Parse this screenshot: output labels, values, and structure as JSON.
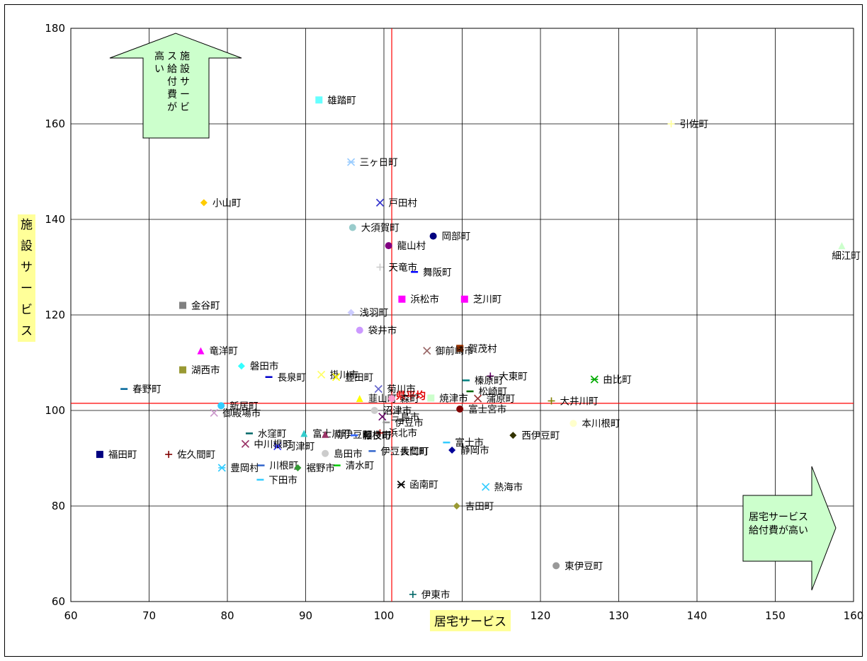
{
  "chart_data": {
    "type": "scatter",
    "xlabel": "居宅サービス",
    "ylabel": "施設サービス",
    "xlim": [
      60,
      160
    ],
    "ylim": [
      60,
      180
    ],
    "xticks": [
      60,
      70,
      80,
      90,
      100,
      110,
      120,
      130,
      140,
      150,
      160
    ],
    "yticks": [
      60,
      80,
      100,
      120,
      140,
      160,
      180
    ],
    "grid": true,
    "average": {
      "label": "県平均",
      "x": 101,
      "y": 101.5,
      "color": "#ff0000"
    },
    "annotations": {
      "up_arrow": "施設サービス給付費が高い",
      "right_arrow_line1": "居宅サービス",
      "right_arrow_line2": "給付費が高い"
    },
    "points": [
      {
        "name": "雄踏町",
        "x": 91.7,
        "y": 165,
        "marker": "square",
        "color": "#66ffff"
      },
      {
        "name": "引佐町",
        "x": 136.7,
        "y": 160,
        "marker": "cross",
        "color": "#ffff99"
      },
      {
        "name": "三ヶ日町",
        "x": 95.8,
        "y": 152,
        "marker": "star",
        "color": "#99ccff"
      },
      {
        "name": "小山町",
        "x": 77,
        "y": 143.5,
        "marker": "diamond",
        "color": "#ffcc00"
      },
      {
        "name": "戸田村",
        "x": 99.5,
        "y": 143.5,
        "marker": "x",
        "color": "#3333cc"
      },
      {
        "name": "大須賀町",
        "x": 96,
        "y": 138.3,
        "marker": "circle",
        "color": "#99cccc"
      },
      {
        "name": "岡部町",
        "x": 106.3,
        "y": 136.5,
        "marker": "circle",
        "color": "#000080"
      },
      {
        "name": "龍山村",
        "x": 100.6,
        "y": 134.5,
        "marker": "circle",
        "color": "#800080"
      },
      {
        "name": "細江町",
        "x": 158.5,
        "y": 134.5,
        "marker": "triangle",
        "color": "#ccffcc"
      },
      {
        "name": "天竜市",
        "x": 99.5,
        "y": 130,
        "marker": "cross",
        "color": "#cccccc"
      },
      {
        "name": "舞阪町",
        "x": 103.9,
        "y": 129,
        "marker": "dash",
        "color": "#0000ff"
      },
      {
        "name": "浜松市",
        "x": 102.3,
        "y": 123.3,
        "marker": "square",
        "color": "#ff00ff"
      },
      {
        "name": "芝川町",
        "x": 110.3,
        "y": 123.3,
        "marker": "square",
        "color": "#ff00ff"
      },
      {
        "name": "金谷町",
        "x": 74.3,
        "y": 122,
        "marker": "square",
        "color": "#808080"
      },
      {
        "name": "浅羽町",
        "x": 95.8,
        "y": 120.5,
        "marker": "diamond",
        "color": "#ccccff"
      },
      {
        "name": "袋井市",
        "x": 96.9,
        "y": 116.8,
        "marker": "circle",
        "color": "#cc99ff"
      },
      {
        "name": "賀茂村",
        "x": 109.7,
        "y": 113,
        "marker": "square",
        "color": "#993300"
      },
      {
        "name": "竜洋町",
        "x": 76.6,
        "y": 112.5,
        "marker": "triangle",
        "color": "#ff00ff"
      },
      {
        "name": "御前崎市",
        "x": 105.5,
        "y": 112.5,
        "marker": "x",
        "color": "#996666"
      },
      {
        "name": "磐田市",
        "x": 81.8,
        "y": 109.3,
        "marker": "diamond",
        "color": "#33ffff"
      },
      {
        "name": "湖西市",
        "x": 74.3,
        "y": 108.5,
        "marker": "square",
        "color": "#999933"
      },
      {
        "name": "掛川市",
        "x": 92,
        "y": 107.5,
        "marker": "x",
        "color": "#ffff66"
      },
      {
        "name": "豊田町",
        "x": 93.9,
        "y": 107,
        "marker": "x",
        "color": "#ffff00"
      },
      {
        "name": "長泉町",
        "x": 85.3,
        "y": 107,
        "marker": "dash",
        "color": "#0000cc"
      },
      {
        "name": "大東町",
        "x": 113.6,
        "y": 107.2,
        "marker": "cross",
        "color": "#660066"
      },
      {
        "name": "榛原町",
        "x": 110.5,
        "y": 106.3,
        "marker": "dash",
        "color": "#008080"
      },
      {
        "name": "由比町",
        "x": 126.9,
        "y": 106.5,
        "marker": "star",
        "color": "#00aa00"
      },
      {
        "name": "菊川市",
        "x": 99.3,
        "y": 104.5,
        "marker": "x",
        "color": "#6666cc"
      },
      {
        "name": "春野町",
        "x": 66.8,
        "y": 104.5,
        "marker": "dash",
        "color": "#006699"
      },
      {
        "name": "松崎町",
        "x": 111,
        "y": 104,
        "marker": "dash",
        "color": "#006600"
      },
      {
        "name": "韮山町",
        "x": 96.9,
        "y": 102.5,
        "marker": "triangle",
        "color": "#ffff00"
      },
      {
        "name": "焼津市",
        "x": 106,
        "y": 102.6,
        "marker": "square",
        "color": "#ccffcc"
      },
      {
        "name": "森町",
        "x": 101,
        "y": 102.5,
        "marker": "circle",
        "color": "#ff99cc"
      },
      {
        "name": "蒲原町",
        "x": 112,
        "y": 102.5,
        "marker": "x",
        "color": "#993333"
      },
      {
        "name": "大井川町",
        "x": 121.4,
        "y": 102,
        "marker": "cross",
        "color": "#808000"
      },
      {
        "name": "新居町",
        "x": 79.2,
        "y": 101,
        "marker": "circle",
        "color": "#33ccff"
      },
      {
        "name": "富士宮市",
        "x": 109.7,
        "y": 100.3,
        "marker": "circle",
        "color": "#800000"
      },
      {
        "name": "沼津市",
        "x": 98.8,
        "y": 100,
        "marker": "circle",
        "color": "#cccccc"
      },
      {
        "name": "三島市",
        "x": 99.8,
        "y": 98.7,
        "marker": "x",
        "color": "#660066"
      },
      {
        "name": "伊豆市",
        "x": 100.3,
        "y": 97.5,
        "marker": "dash",
        "color": "#999999"
      },
      {
        "name": "本川根町",
        "x": 124.2,
        "y": 97.3,
        "marker": "circle",
        "color": "#ffffcc"
      },
      {
        "name": "御殿場市",
        "x": 78.3,
        "y": 99.5,
        "marker": "x",
        "color": "#cc99cc"
      },
      {
        "name": "富士川町",
        "x": 89.8,
        "y": 95.2,
        "marker": "triangle",
        "color": "#33cccc"
      },
      {
        "name": "南伊豆町",
        "x": 92.5,
        "y": 95,
        "marker": "triangle",
        "color": "#993366"
      },
      {
        "name": "浜北市",
        "x": 99.5,
        "y": 95.3,
        "marker": "cross",
        "color": "#cc0000"
      },
      {
        "name": "藤枝市",
        "x": 96.2,
        "y": 94.8,
        "marker": "dash",
        "color": "#3366ff"
      },
      {
        "name": "相良町",
        "x": 96.2,
        "y": 94.8,
        "marker": "dash",
        "color": "#3366ff"
      },
      {
        "name": "西伊豆町",
        "x": 116.5,
        "y": 94.8,
        "marker": "diamond",
        "color": "#333300"
      },
      {
        "name": "水窪町",
        "x": 82.8,
        "y": 95.2,
        "marker": "dash",
        "color": "#006666"
      },
      {
        "name": "河津町",
        "x": 86.4,
        "y": 92.5,
        "marker": "star",
        "color": "#3333ff"
      },
      {
        "name": "富士市",
        "x": 108,
        "y": 93.3,
        "marker": "dash",
        "color": "#33ccff"
      },
      {
        "name": "中川根町",
        "x": 82.3,
        "y": 93,
        "marker": "x",
        "color": "#993366"
      },
      {
        "name": "伊豆長岡町",
        "x": 98.5,
        "y": 91.5,
        "marker": "dash",
        "color": "#3366cc"
      },
      {
        "name": "大仁町",
        "x": 101,
        "y": 91.5,
        "marker": "dash",
        "color": "#cccccc"
      },
      {
        "name": "静岡市",
        "x": 108.7,
        "y": 91.7,
        "marker": "diamond",
        "color": "#000099"
      },
      {
        "name": "福田町",
        "x": 63.7,
        "y": 90.8,
        "marker": "square",
        "color": "#000080"
      },
      {
        "name": "佐久間町",
        "x": 72.5,
        "y": 90.8,
        "marker": "cross",
        "color": "#800000"
      },
      {
        "name": "島田市",
        "x": 92.5,
        "y": 91,
        "marker": "circle",
        "color": "#cccccc"
      },
      {
        "name": "清水町",
        "x": 94,
        "y": 88.5,
        "marker": "dash",
        "color": "#00cc00"
      },
      {
        "name": "豊岡村",
        "x": 79.3,
        "y": 88,
        "marker": "star",
        "color": "#33ccff"
      },
      {
        "name": "川根町",
        "x": 84.3,
        "y": 88.5,
        "marker": "dash",
        "color": "#3366cc"
      },
      {
        "name": "裾野市",
        "x": 89,
        "y": 88,
        "marker": "diamond",
        "color": "#339933"
      },
      {
        "name": "下田市",
        "x": 84.2,
        "y": 85.5,
        "marker": "dash",
        "color": "#33ccff"
      },
      {
        "name": "函南町",
        "x": 102.2,
        "y": 84.5,
        "marker": "star",
        "color": "#000000"
      },
      {
        "name": "熱海市",
        "x": 113,
        "y": 84,
        "marker": "x",
        "color": "#33ccff"
      },
      {
        "name": "吉田町",
        "x": 109.3,
        "y": 80,
        "marker": "diamond",
        "color": "#999933"
      },
      {
        "name": "東伊豆町",
        "x": 122,
        "y": 67.5,
        "marker": "circle",
        "color": "#999999"
      },
      {
        "name": "伊東市",
        "x": 103.7,
        "y": 61.5,
        "marker": "cross",
        "color": "#006666"
      }
    ]
  }
}
